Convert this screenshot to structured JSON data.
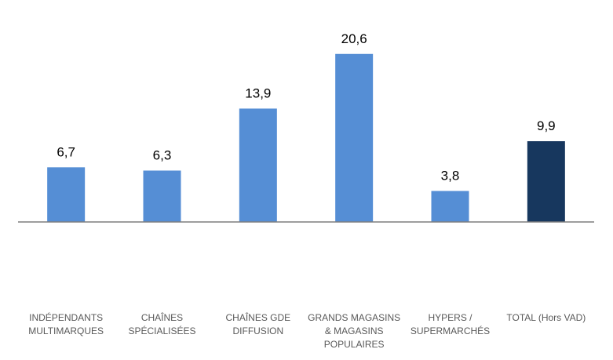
{
  "chart_data": {
    "type": "bar",
    "categories": [
      "INDÉPENDANTS MULTIMARQUES",
      "CHAÎNES SPÉCIALISÉES",
      "CHAÎNES GDE DIFFUSION",
      "GRANDS MAGASINS & MAGASINS POPULAIRES",
      "HYPERS / SUPERMARCHÉS",
      "TOTAL (Hors VAD)"
    ],
    "values": [
      6.7,
      6.3,
      13.9,
      20.6,
      3.8,
      9.9
    ],
    "value_labels": [
      "6,7",
      "6,3",
      "13,9",
      "20,6",
      "3,8",
      "9,9"
    ],
    "colors": [
      "#558ed5",
      "#558ed5",
      "#558ed5",
      "#558ed5",
      "#558ed5",
      "#17375e"
    ],
    "ylim": [
      0,
      25
    ]
  }
}
